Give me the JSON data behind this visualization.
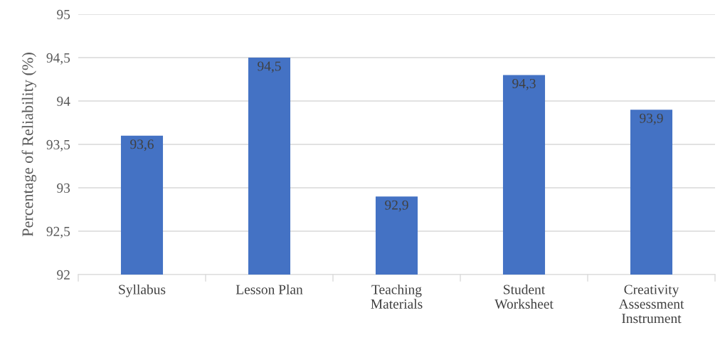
{
  "chart_data": {
    "type": "bar",
    "ylabel": "Percentage of Reliability (%)",
    "categories": [
      "Syllabus",
      "Lesson Plan",
      "Teaching\nMaterials",
      "Student\nWorksheet",
      "Creativity\nAssessment\nInstrument"
    ],
    "values": [
      93.6,
      94.5,
      92.9,
      94.3,
      93.9
    ],
    "value_labels": [
      "93,6",
      "94,5",
      "92,9",
      "94,3",
      "93,9"
    ],
    "color": "#4472c4",
    "ylim": [
      92,
      95
    ],
    "yticks": [
      92,
      {
        "value": 92.5,
        "label": "92,5"
      },
      93,
      {
        "value": 93.5,
        "label": "93,5"
      },
      94,
      {
        "value": 94.5,
        "label": "94,5"
      },
      95
    ],
    "grid": "y",
    "legend": false
  }
}
